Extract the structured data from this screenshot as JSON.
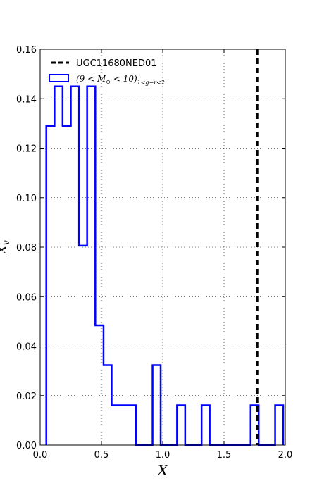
{
  "chart_data": {
    "type": "histogram",
    "xlabel": "X",
    "ylabel": "X_v",
    "xlim": [
      0.0,
      2.0
    ],
    "ylim": [
      0.0,
      0.16
    ],
    "xticks": [
      "0.0",
      "0.5",
      "1.0",
      "1.5",
      "2.0"
    ],
    "yticks": [
      "0.00",
      "0.02",
      "0.04",
      "0.06",
      "0.08",
      "0.10",
      "0.12",
      "0.14",
      "0.16"
    ],
    "grid": true,
    "legend_position": "top-left",
    "reference_line": {
      "name": "UGC11680NED01",
      "x": 1.77,
      "style": "dashed",
      "color": "#000000"
    },
    "series": [
      {
        "name": "(9 < M_⊙ < 10)_{1<g−r<2}",
        "color": "#0000ff",
        "bin_edges": [
          0.05,
          0.117,
          0.183,
          0.25,
          0.317,
          0.383,
          0.45,
          0.517,
          0.583,
          0.65,
          0.717,
          0.783,
          0.85,
          0.917,
          0.983,
          1.05,
          1.117,
          1.183,
          1.25,
          1.317,
          1.383,
          1.45,
          1.517,
          1.583,
          1.65,
          1.717,
          1.783,
          1.85,
          1.917,
          1.983
        ],
        "values": [
          0.129,
          0.145,
          0.129,
          0.145,
          0.0806,
          0.145,
          0.0484,
          0.0323,
          0.0161,
          0.0161,
          0.0161,
          0.0,
          0.0,
          0.0323,
          0.0,
          0.0,
          0.0161,
          0.0,
          0.0,
          0.0161,
          0.0,
          0.0,
          0.0,
          0.0,
          0.0,
          0.0161,
          0.0,
          0.0,
          0.0161
        ]
      }
    ]
  }
}
